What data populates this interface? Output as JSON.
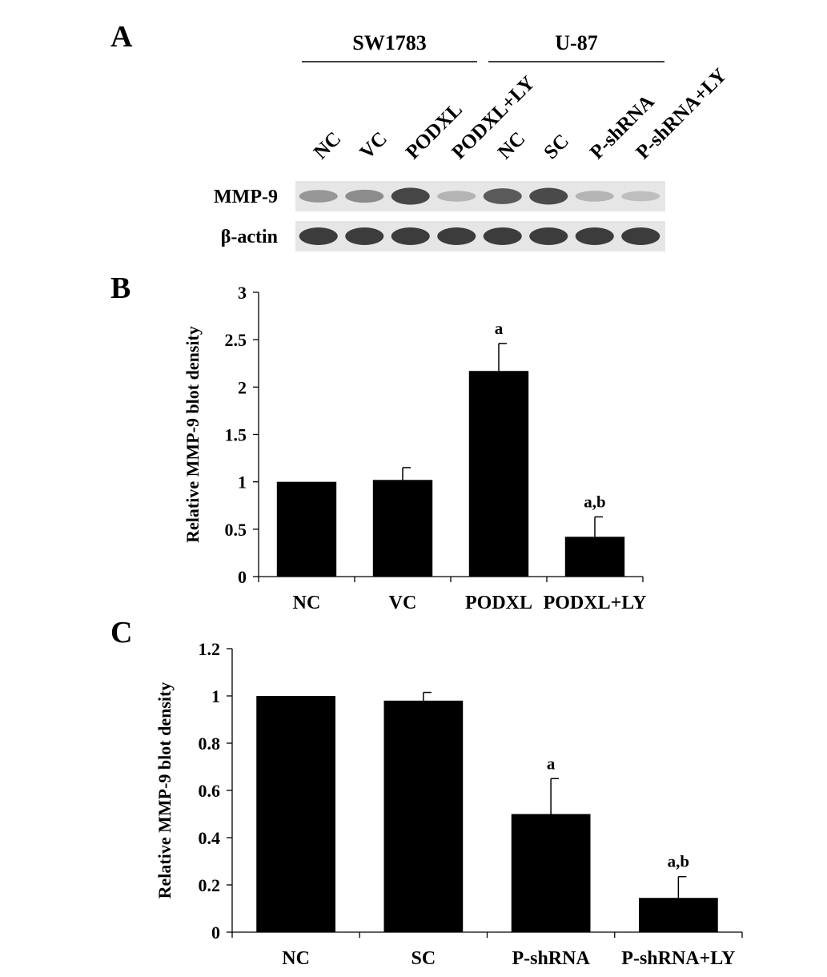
{
  "panels": {
    "a": "A",
    "b": "B",
    "c": "C"
  },
  "blot": {
    "groups": [
      {
        "name": "SW1783"
      },
      {
        "name": "U-87"
      }
    ],
    "lanes": [
      "NC",
      "VC",
      "PODXL",
      "PODXL+LY",
      "NC",
      "SC",
      "P-shRNA",
      "P-shRNA+LY"
    ],
    "rows": [
      {
        "label": "MMP-9",
        "intensities": [
          0.4,
          0.45,
          0.8,
          0.25,
          0.7,
          0.78,
          0.25,
          0.2
        ]
      },
      {
        "label": "β-actin",
        "intensities": [
          0.85,
          0.85,
          0.85,
          0.85,
          0.85,
          0.85,
          0.85,
          0.85
        ]
      }
    ]
  },
  "chart_data": [
    {
      "type": "bar",
      "categories": [
        "NC",
        "VC",
        "PODXL",
        "PODXL+LY"
      ],
      "values": [
        1.0,
        1.02,
        2.17,
        0.42
      ],
      "errors": [
        0,
        0.13,
        0.29,
        0.21
      ],
      "annotations": [
        "",
        "",
        "a",
        "a,b"
      ],
      "ylabel": "Relative MMP-9 blot density",
      "ylim": [
        0,
        3
      ],
      "yticks": [
        0,
        0.5,
        1,
        1.5,
        2,
        2.5,
        3
      ],
      "ytick_labels": [
        "0",
        "0.5",
        "1",
        "1.5",
        "2",
        "2.5",
        "3"
      ],
      "color": "#000000"
    },
    {
      "type": "bar",
      "categories": [
        "NC",
        "SC",
        "P-shRNA",
        "P-shRNA+LY"
      ],
      "values": [
        1.0,
        0.98,
        0.5,
        0.145
      ],
      "errors": [
        0,
        0.035,
        0.15,
        0.09
      ],
      "annotations": [
        "",
        "",
        "a",
        "a,b"
      ],
      "ylabel": "Relative MMP-9 blot density",
      "ylim": [
        0,
        1.2
      ],
      "yticks": [
        0,
        0.2,
        0.4,
        0.6,
        0.8,
        1.0,
        1.2
      ],
      "ytick_labels": [
        "0",
        "0.2",
        "0.4",
        "0.6",
        "0.8",
        "1",
        "1.2"
      ],
      "color": "#000000"
    }
  ]
}
